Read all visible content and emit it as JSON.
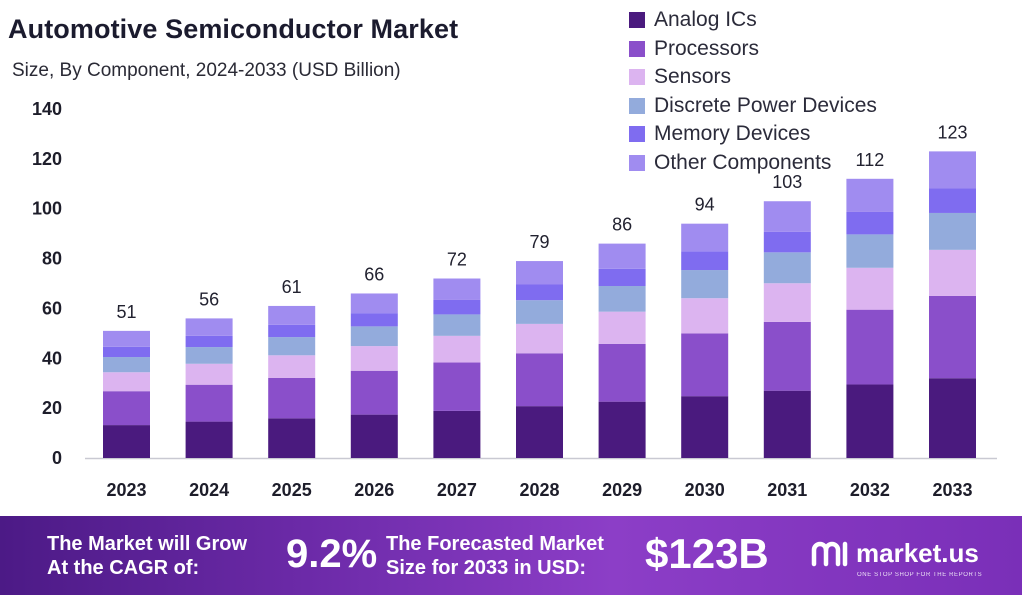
{
  "chart_data": {
    "type": "stacked_bar",
    "title": "Automotive Semiconductor Market",
    "subtitle": "Size, By Component, 2024-2033 (USD Billion)",
    "xlabel": "",
    "ylabel": "",
    "ylim": [
      0,
      140
    ],
    "yticks": [
      0,
      20,
      40,
      60,
      80,
      100,
      120,
      140
    ],
    "categories": [
      "2023",
      "2024",
      "2025",
      "2026",
      "2027",
      "2028",
      "2029",
      "2030",
      "2031",
      "2032",
      "2033"
    ],
    "totals": [
      51,
      56,
      61,
      66,
      72,
      79,
      86,
      94,
      103,
      112,
      123
    ],
    "series": [
      {
        "name": "Analog ICs",
        "color": "#4a1a7e",
        "values": [
          13.2,
          14.6,
          15.9,
          17.4,
          18.9,
          20.8,
          22.6,
          24.8,
          27.0,
          29.5,
          32.0
        ]
      },
      {
        "name": "Processors",
        "color": "#8a4fca",
        "values": [
          13.6,
          14.8,
          16.2,
          17.6,
          19.4,
          21.2,
          23.2,
          25.2,
          27.6,
          30.0,
          33.0
        ]
      },
      {
        "name": "Sensors",
        "color": "#dcb4f0",
        "values": [
          7.6,
          8.4,
          9.1,
          9.9,
          10.7,
          11.8,
          12.9,
          14.1,
          15.5,
          16.8,
          18.5
        ]
      },
      {
        "name": "Discrete Power Devices",
        "color": "#93abdc",
        "values": [
          6.1,
          6.7,
          7.3,
          7.9,
          8.6,
          9.5,
          10.3,
          11.3,
          12.4,
          13.4,
          14.8
        ]
      },
      {
        "name": "Memory Devices",
        "color": "#7f6cf0",
        "values": [
          4.1,
          4.5,
          4.9,
          5.3,
          5.8,
          6.3,
          6.9,
          7.5,
          8.2,
          9.0,
          9.8
        ]
      },
      {
        "name": "Other Components",
        "color": "#a08cf0",
        "values": [
          6.4,
          7.0,
          7.6,
          7.9,
          8.6,
          9.4,
          10.1,
          11.1,
          12.3,
          13.3,
          14.9
        ]
      }
    ],
    "grid": false,
    "legend": "top-right"
  },
  "footer": {
    "grow_line1": "The Market will Grow",
    "grow_line2": "At the CAGR of:",
    "cagr": "9.2%",
    "forecast_line1": "The Forecasted Market",
    "forecast_line2": "Size for 2033 in USD:",
    "forecast_value": "$123B",
    "logo_text": "market.us",
    "logo_tagline": "ONE STOP SHOP FOR THE REPORTS"
  }
}
